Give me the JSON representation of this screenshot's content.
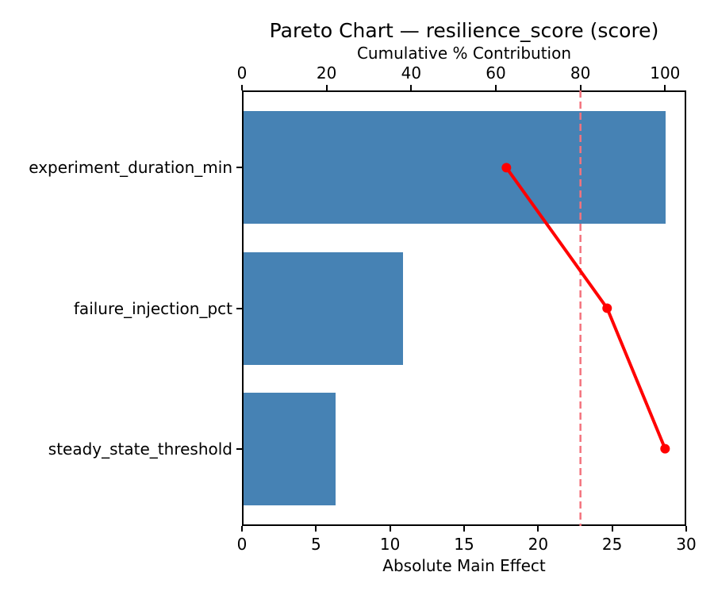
{
  "chart_data": {
    "type": "bar",
    "orientation": "horizontal",
    "title": "Pareto Chart — resilience_score (score)",
    "top_axis_label": "Cumulative % Contribution",
    "bottom_axis_label": "Absolute Main Effect",
    "categories": [
      "experiment_duration_min",
      "failure_injection_pct",
      "steady_state_threshold"
    ],
    "values": [
      28.6,
      10.9,
      6.3
    ],
    "series": [
      {
        "name": "Absolute Main Effect",
        "type": "bar",
        "values": [
          28.6,
          10.9,
          6.3
        ]
      },
      {
        "name": "Cumulative % Contribution",
        "type": "line",
        "values": [
          62.5,
          86.3,
          100.0
        ]
      }
    ],
    "cumulative_pct": [
      62.5,
      86.3,
      100.0
    ],
    "threshold_pct": 80,
    "xlim_bottom": [
      0,
      30
    ],
    "xlim_top": [
      0,
      105
    ],
    "bottom_ticks": [
      0,
      5,
      10,
      15,
      20,
      25,
      30
    ],
    "top_ticks": [
      0,
      20,
      40,
      60,
      80,
      100
    ],
    "grid": false,
    "legend": "none",
    "colors": {
      "bar": "#4682B4",
      "line": "#FF0000",
      "marker": "#FF0000",
      "threshold": "#F4737D",
      "axis": "#000000",
      "background": "#FFFFFF"
    }
  }
}
